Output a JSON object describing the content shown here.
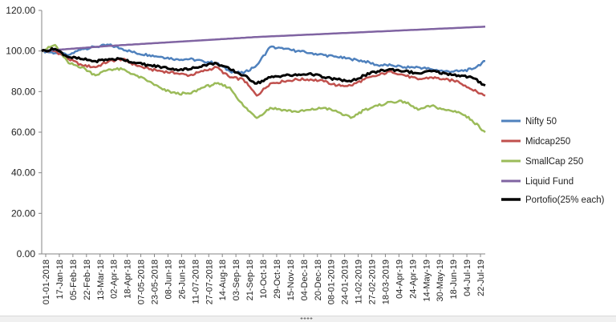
{
  "chart_data": {
    "type": "line",
    "title": "",
    "xlabel": "",
    "ylabel": "",
    "ylim": [
      0,
      120
    ],
    "yticks": [
      "0.00",
      "20.00",
      "40.00",
      "60.00",
      "80.00",
      "100.00",
      "120.00"
    ],
    "grid": false,
    "legend_position": "right",
    "x_start": "01-01-2018",
    "x_end": "06-08-2019",
    "x_tick_labels": [
      "01-01-2018",
      "17-Jan-18",
      "05-Feb-18",
      "22-Feb-18",
      "13-Mar-18",
      "02-Apr-18",
      "18-Apr-18",
      "07-05-2018",
      "23-05-2018",
      "08-Jun-18",
      "26-Jun-18",
      "11-07-2018",
      "27-07-2018",
      "14-Aug-18",
      "03-Sep-18",
      "21-Sep-18",
      "10-Oct-18",
      "29-Oct-18",
      "15-Nov-18",
      "04-Dec-18",
      "20-Dec-18",
      "08-01-2019",
      "24-01-2019",
      "11-02-2019",
      "27-02-2019",
      "18-03-2019",
      "04-Apr-19",
      "24-Apr-19",
      "14-May-19",
      "30-May-19",
      "18-Jun-19",
      "04-Jul-19",
      "22-Jul-19"
    ],
    "x": [
      "01-01-2018",
      "17-Jan-18",
      "05-Feb-18",
      "22-Feb-18",
      "13-Mar-18",
      "02-Apr-18",
      "18-Apr-18",
      "07-05-2018",
      "23-05-2018",
      "08-Jun-18",
      "26-Jun-18",
      "11-07-2018",
      "27-07-2018",
      "14-Aug-18",
      "03-Sep-18",
      "21-Sep-18",
      "10-Oct-18",
      "29-Oct-18",
      "15-Nov-18",
      "04-Dec-18",
      "20-Dec-18",
      "08-01-2019",
      "24-01-2019",
      "11-02-2019",
      "27-02-2019",
      "18-03-2019",
      "04-Apr-19",
      "24-Apr-19",
      "14-May-19",
      "30-May-19",
      "18-Jun-19",
      "04-Jul-19",
      "22-Jul-19",
      "06-Aug-19"
    ],
    "series": [
      {
        "name": "Nifty 50",
        "color": "#4f81bd",
        "width": 2.5,
        "values": [
          100,
          99,
          98,
          101,
          102,
          103,
          101,
          99,
          98,
          97,
          96,
          96,
          95,
          94,
          90,
          89,
          93,
          102,
          101,
          100,
          99,
          98,
          97,
          96,
          95,
          93,
          93,
          92,
          92,
          91,
          90,
          90,
          91,
          95
        ]
      },
      {
        "name": "Midcap250",
        "color": "#c0504d",
        "width": 2.5,
        "values": [
          100,
          100,
          96,
          93,
          92,
          95,
          96,
          93,
          91,
          90,
          89,
          88,
          90,
          92,
          87,
          86,
          78,
          84,
          85,
          86,
          86,
          85,
          83,
          83,
          86,
          88,
          90,
          88,
          86,
          87,
          86,
          85,
          81,
          78
        ]
      },
      {
        "name": "SmallCap 250",
        "color": "#9bbb59",
        "width": 2.5,
        "values": [
          100,
          103,
          94,
          92,
          88,
          91,
          91,
          88,
          85,
          81,
          79,
          79,
          82,
          84,
          82,
          73,
          67,
          72,
          71,
          70,
          71,
          72,
          70,
          67,
          71,
          73,
          75,
          75,
          71,
          73,
          71,
          70,
          66,
          60
        ]
      },
      {
        "name": "Liquid Fund",
        "color": "#8064a2",
        "width": 2.5,
        "values": [
          100,
          100.5,
          101,
          101.5,
          102,
          102.5,
          102.9,
          103.3,
          103.7,
          104.1,
          104.5,
          104.9,
          105.3,
          105.7,
          106.1,
          106.5,
          106.9,
          107.2,
          107.5,
          107.8,
          108.1,
          108.4,
          108.7,
          109,
          109.3,
          109.6,
          109.9,
          110.2,
          110.5,
          110.8,
          111.1,
          111.4,
          111.7,
          112
        ]
      },
      {
        "name": "Portofio(25% each)",
        "color": "#000000",
        "width": 3,
        "values": [
          100,
          101,
          97,
          96,
          95,
          96,
          96,
          94,
          93,
          92,
          91,
          91,
          93,
          94,
          91,
          88,
          84,
          87,
          88,
          88,
          89,
          87,
          86,
          85,
          88,
          90,
          91,
          90,
          89,
          90,
          89,
          88,
          87,
          83
        ]
      }
    ]
  }
}
